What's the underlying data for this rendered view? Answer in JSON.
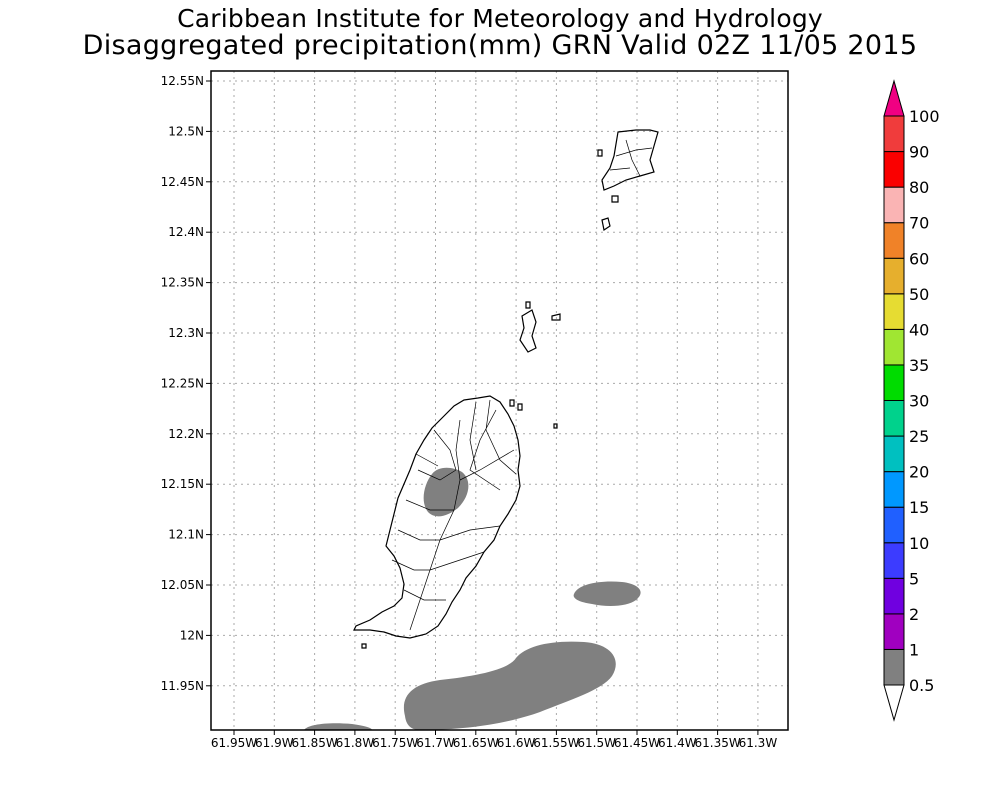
{
  "header": {
    "institute": "Caribbean Institute for Meteorology and Hydrology",
    "product": "Disaggregated precipitation(mm) GRN Valid 02Z 11/05 2015"
  },
  "map": {
    "region": "GRN",
    "lon_ticks": [
      "61.95W",
      "61.9W",
      "61.85W",
      "61.8W",
      "61.75W",
      "61.7W",
      "61.65W",
      "61.6W",
      "61.55W",
      "61.5W",
      "61.45W",
      "61.4W",
      "61.35W",
      "61.3W"
    ],
    "lat_ticks": [
      "12.55N",
      "12.5N",
      "12.45N",
      "12.4N",
      "12.35N",
      "12.3N",
      "12.25N",
      "12.2N",
      "12.15N",
      "12.1N",
      "12.05N",
      "12N",
      "11.95N"
    ],
    "grid": true,
    "precip_color": "#808080",
    "precip_class": "0.5-1 mm"
  },
  "colorbar": {
    "labels": [
      "0.5",
      "1",
      "2",
      "5",
      "10",
      "15",
      "20",
      "25",
      "30",
      "35",
      "40",
      "50",
      "60",
      "70",
      "80",
      "90",
      "100"
    ],
    "colors": [
      "#808080",
      "#a000c0",
      "#7000e0",
      "#3c3cff",
      "#2060ff",
      "#0098ff",
      "#00c0c0",
      "#00d28c",
      "#00dc00",
      "#a0e632",
      "#e6dc32",
      "#e6af2d",
      "#f08228",
      "#fab4b4",
      "#fa0000",
      "#f03c3c",
      "#f00082"
    ]
  }
}
